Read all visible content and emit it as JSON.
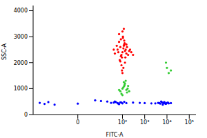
{
  "chart_data": {
    "type": "scatter",
    "x_label": "FITC-A",
    "y_label": "SSC-A",
    "log": "x",
    "marker": "circle",
    "grid": false,
    "xlim": [
      -100,
      200000
    ],
    "xticks": [
      {
        "value": 0,
        "label": "0"
      },
      {
        "value": 100,
        "label": "10²"
      },
      {
        "value": 1000,
        "label": "10³"
      },
      {
        "value": 10000,
        "label": "10⁴"
      },
      {
        "value": 100000,
        "label": "10⁵"
      }
    ],
    "ylim": [
      0,
      4200
    ],
    "yticks": [
      0,
      1000,
      2000,
      3000,
      4000
    ],
    "series": [
      {
        "color": "#ff0000",
        "x": [
          60,
          80,
          100,
          120,
          90,
          110,
          70,
          130,
          150,
          85,
          95,
          105,
          115,
          140,
          75,
          65,
          125,
          160,
          180,
          200,
          55,
          45,
          100,
          90,
          110,
          120,
          80,
          70,
          135,
          150,
          95,
          105,
          220,
          250,
          40,
          100,
          115,
          85,
          130,
          300
        ],
        "y": [
          2500,
          2600,
          2400,
          2700,
          2300,
          2550,
          2800,
          2450,
          2350,
          2900,
          2200,
          3000,
          2650,
          2500,
          2100,
          2400,
          2750,
          2600,
          2300,
          2450,
          2650,
          2350,
          3200,
          1900,
          1800,
          2850,
          2050,
          3100,
          2200,
          2700,
          1700,
          2950,
          2500,
          2400,
          2500,
          1600,
          3300,
          2250,
          2000,
          2300
        ]
      },
      {
        "color": "#33cc33",
        "x": [
          80,
          100,
          120,
          150,
          130,
          90,
          110,
          170,
          200,
          140,
          160,
          100,
          125,
          180,
          70,
          115,
          10000,
          12000,
          9000,
          15000
        ],
        "y": [
          900,
          1000,
          1100,
          950,
          1200,
          800,
          1050,
          1000,
          900,
          1300,
          850,
          750,
          1150,
          1100,
          950,
          1250,
          1800,
          1600,
          2000,
          1700
        ]
      },
      {
        "color": "#0000ff",
        "x": [
          -50,
          -20,
          0,
          20,
          40,
          60,
          80,
          100,
          120,
          -30,
          10,
          30,
          50,
          70,
          90,
          150,
          5,
          -10,
          45,
          65,
          3000,
          4000,
          5000,
          6000,
          7000,
          8000,
          9000,
          10000,
          12000,
          5500,
          6500,
          7500,
          4500,
          8500,
          11000,
          15000,
          300,
          600,
          1000,
          2000
        ],
        "y": [
          450,
          480,
          420,
          500,
          460,
          440,
          470,
          430,
          490,
          410,
          520,
          450,
          480,
          400,
          460,
          440,
          550,
          380,
          500,
          420,
          430,
          450,
          420,
          470,
          440,
          460,
          410,
          450,
          430,
          500,
          380,
          480,
          440,
          420,
          460,
          440,
          460,
          450,
          440,
          430
        ]
      }
    ]
  }
}
